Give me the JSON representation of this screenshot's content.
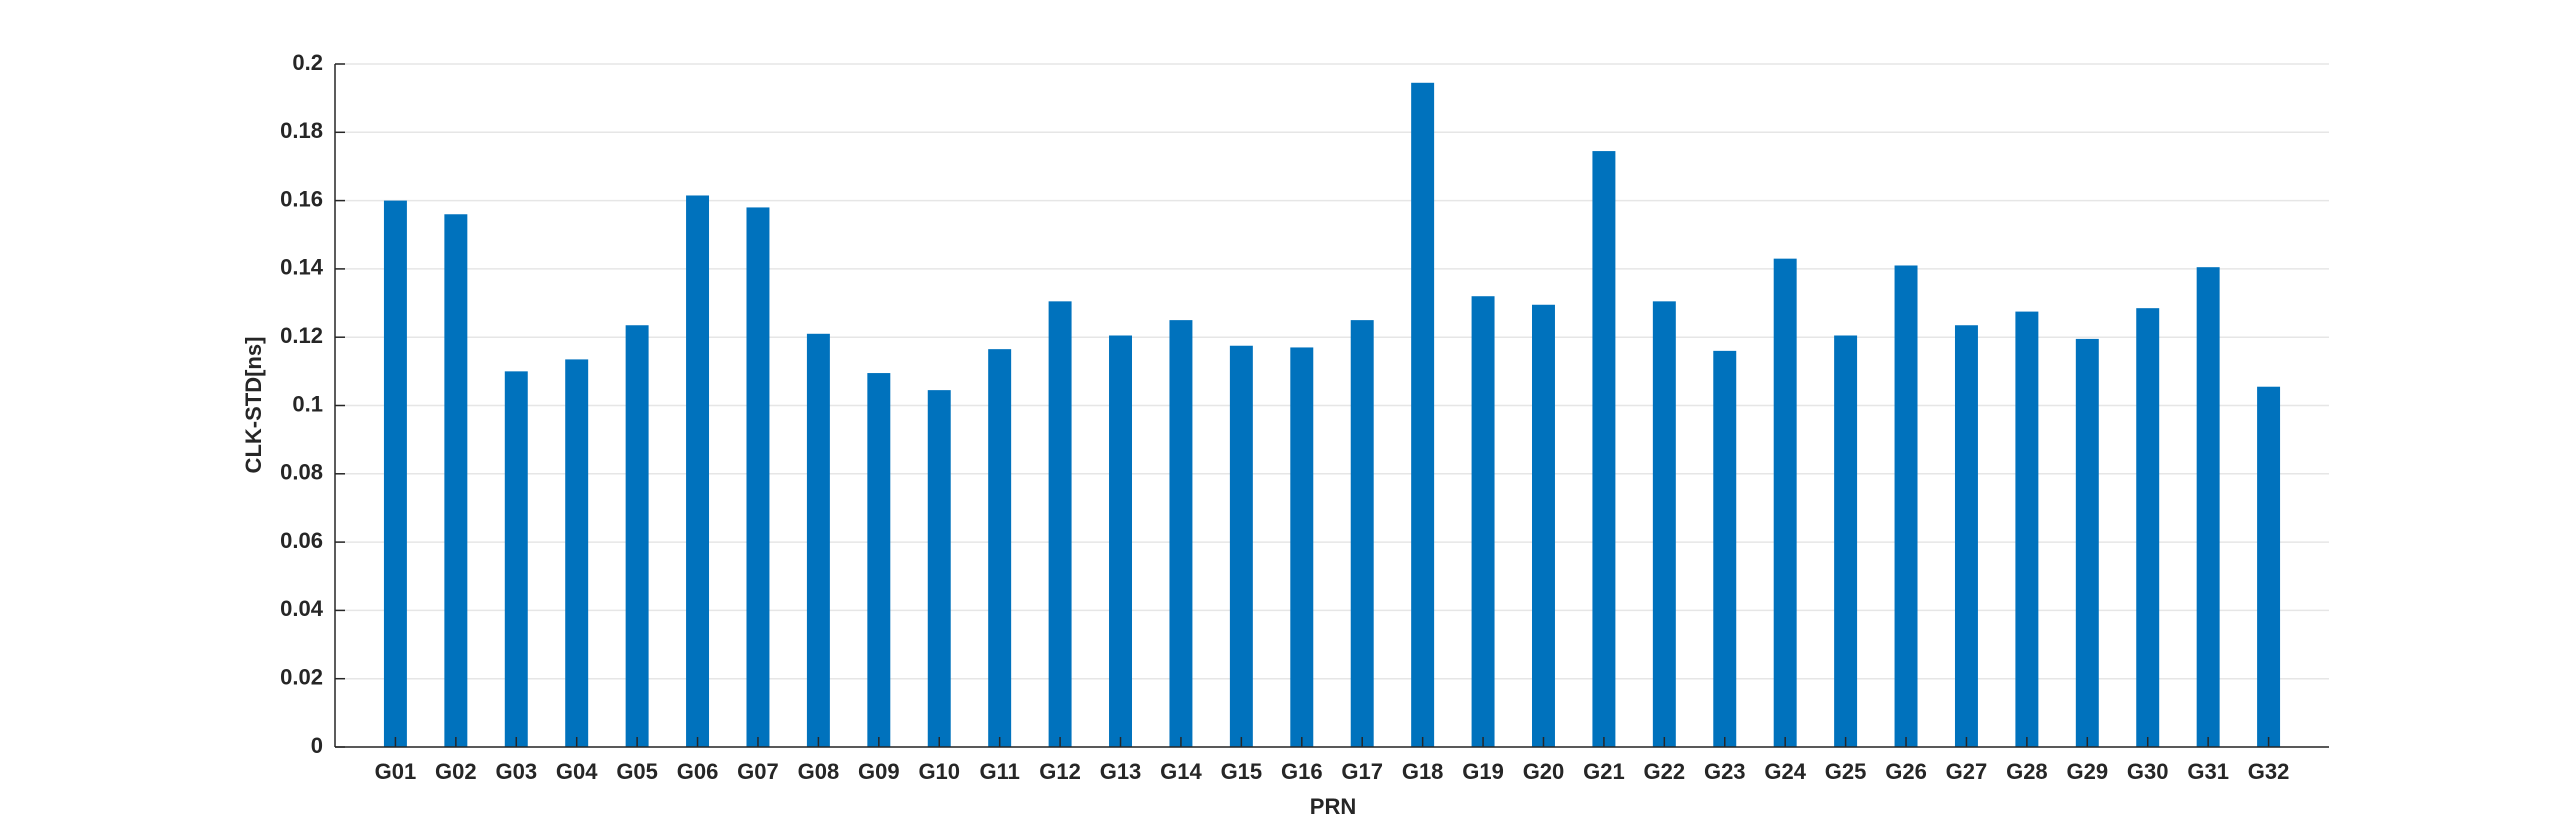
{
  "chart_data": {
    "type": "bar",
    "xlabel": "PRN",
    "ylabel": "CLK-STD[ns]",
    "categories": [
      "G01",
      "G02",
      "G03",
      "G04",
      "G05",
      "G06",
      "G07",
      "G08",
      "G09",
      "G10",
      "G11",
      "G12",
      "G13",
      "G14",
      "G15",
      "G16",
      "G17",
      "G18",
      "G19",
      "G20",
      "G21",
      "G22",
      "G23",
      "G24",
      "G25",
      "G26",
      "G27",
      "G28",
      "G29",
      "G30",
      "G31",
      "G32"
    ],
    "values": [
      0.16,
      0.156,
      0.11,
      0.1135,
      0.1235,
      0.1615,
      0.158,
      0.121,
      0.1095,
      0.1045,
      0.1165,
      0.1305,
      0.1205,
      0.125,
      0.1175,
      0.117,
      0.125,
      0.1945,
      0.132,
      0.1295,
      0.1745,
      0.1305,
      0.116,
      0.143,
      0.1205,
      0.141,
      0.1235,
      0.1275,
      0.1195,
      0.1285,
      0.1405,
      0.1055
    ],
    "color": "#0072bd",
    "ylim": [
      0,
      0.2
    ],
    "yticks": [
      0,
      0.02,
      0.04,
      0.06,
      0.08,
      0.1,
      0.12,
      0.14,
      0.16,
      0.18,
      0.2
    ],
    "grid": true
  }
}
